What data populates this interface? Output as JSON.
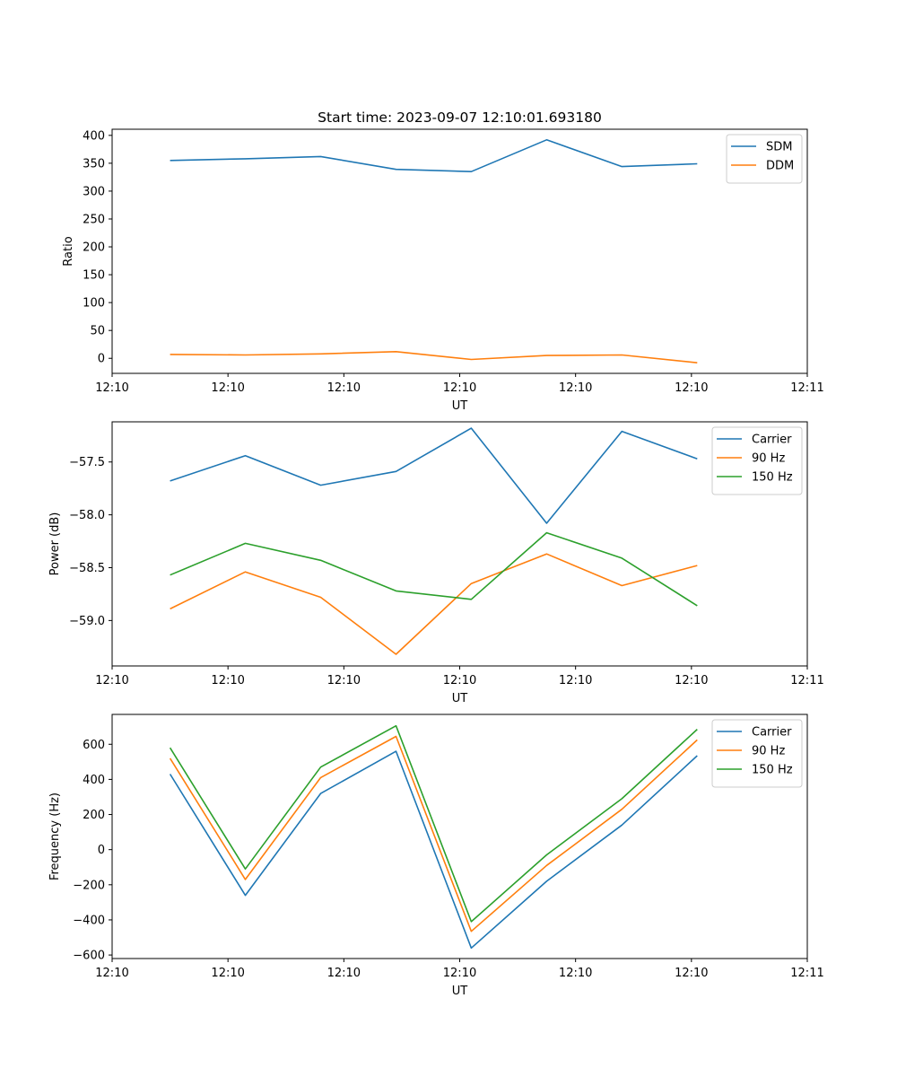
{
  "figure_title": "Start time: 2023-09-07 12:10:01.693180",
  "chart_data": [
    {
      "type": "line",
      "title": "Start time: 2023-09-07 12:10:01.693180",
      "xlabel": "UT",
      "ylabel": "Ratio",
      "x": [
        0.5,
        1.15,
        1.8,
        2.45,
        3.1,
        3.75,
        4.4,
        5.05
      ],
      "xlim": [
        0,
        6
      ],
      "xticks": [
        0,
        1,
        2,
        3,
        4,
        5,
        6
      ],
      "xtick_labels": [
        "12:10",
        "12:10",
        "12:10",
        "12:10",
        "12:10",
        "12:10",
        "12:11"
      ],
      "ylim": [
        -27,
        411
      ],
      "yticks": [
        0,
        50,
        100,
        150,
        200,
        250,
        300,
        350,
        400
      ],
      "ytick_labels": [
        "0",
        "50",
        "100",
        "150",
        "200",
        "250",
        "300",
        "350",
        "400"
      ],
      "legend_position": "upper right",
      "series": [
        {
          "name": "SDM",
          "color": "#1f77b4",
          "values": [
            355,
            358,
            362,
            339,
            335,
            392,
            344,
            349
          ]
        },
        {
          "name": "DDM",
          "color": "#ff7f0e",
          "values": [
            7,
            6,
            8,
            12,
            -2,
            5,
            6,
            -8
          ]
        }
      ]
    },
    {
      "type": "line",
      "title": "",
      "xlabel": "UT",
      "ylabel": "Power (dB)",
      "x": [
        0.5,
        1.15,
        1.8,
        2.45,
        3.1,
        3.75,
        4.4,
        5.05
      ],
      "xlim": [
        0,
        6
      ],
      "xticks": [
        0,
        1,
        2,
        3,
        4,
        5,
        6
      ],
      "xtick_labels": [
        "12:10",
        "12:10",
        "12:10",
        "12:10",
        "12:10",
        "12:10",
        "12:11"
      ],
      "ylim": [
        -59.43,
        -57.12
      ],
      "yticks": [
        -57.5,
        -58.0,
        -58.5,
        -59.0
      ],
      "ytick_labels": [
        "−57.5",
        "−58.0",
        "−58.5",
        "−59.0"
      ],
      "legend_position": "upper right",
      "series": [
        {
          "name": "Carrier",
          "color": "#1f77b4",
          "values": [
            -57.68,
            -57.44,
            -57.72,
            -57.59,
            -57.18,
            -58.08,
            -57.21,
            -57.47
          ]
        },
        {
          "name": "90 Hz",
          "color": "#ff7f0e",
          "values": [
            -58.89,
            -58.54,
            -58.78,
            -59.32,
            -58.65,
            -58.37,
            -58.67,
            -58.48
          ]
        },
        {
          "name": "150 Hz",
          "color": "#2ca02c",
          "values": [
            -58.57,
            -58.27,
            -58.43,
            -58.72,
            -58.8,
            -58.17,
            -58.41,
            -58.86
          ]
        }
      ]
    },
    {
      "type": "line",
      "title": "",
      "xlabel": "UT",
      "ylabel": "Frequency (Hz)",
      "x": [
        0.5,
        1.15,
        1.8,
        2.45,
        3.1,
        3.75,
        4.4,
        5.05
      ],
      "xlim": [
        0,
        6
      ],
      "xticks": [
        0,
        1,
        2,
        3,
        4,
        5,
        6
      ],
      "xtick_labels": [
        "12:10",
        "12:10",
        "12:10",
        "12:10",
        "12:10",
        "12:10",
        "12:11"
      ],
      "ylim": [
        -620,
        770
      ],
      "yticks": [
        600,
        400,
        200,
        0,
        -200,
        -400,
        -600
      ],
      "ytick_labels": [
        "600",
        "400",
        "200",
        "0",
        "−200",
        "−400",
        "−600"
      ],
      "legend_position": "upper right",
      "series": [
        {
          "name": "Carrier",
          "color": "#1f77b4",
          "values": [
            430,
            -260,
            320,
            560,
            -560,
            -180,
            140,
            535
          ]
        },
        {
          "name": "90 Hz",
          "color": "#ff7f0e",
          "values": [
            520,
            -170,
            410,
            645,
            -465,
            -90,
            230,
            625
          ]
        },
        {
          "name": "150 Hz",
          "color": "#2ca02c",
          "values": [
            580,
            -110,
            470,
            705,
            -410,
            -30,
            290,
            685
          ]
        }
      ]
    }
  ]
}
